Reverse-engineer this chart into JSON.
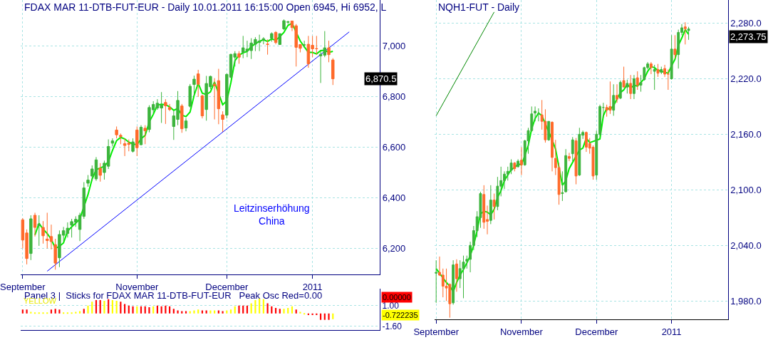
{
  "chart_data": [
    {
      "type": "candlestick",
      "title": "FDAX MAR 11-DTB-FUT-EUR - Daily 10.01.2011 16:15:00 Open 6945, Hi 6952, L",
      "categories": [
        "September",
        null,
        null,
        null,
        null,
        null,
        null,
        null,
        null,
        null,
        null,
        null,
        null,
        null,
        null,
        null,
        null,
        null,
        null,
        null,
        null,
        null,
        null,
        null,
        null,
        null,
        null,
        null,
        "November",
        null,
        null,
        null,
        null,
        null,
        null,
        null,
        null,
        null,
        null,
        null,
        null,
        null,
        null,
        null,
        null,
        null,
        null,
        null,
        null,
        null,
        "December",
        null,
        null,
        null,
        null,
        null,
        null,
        null,
        null,
        null,
        null,
        null,
        null,
        null,
        null,
        null,
        null,
        null,
        null,
        null,
        null,
        "2011",
        null,
        null,
        null,
        null,
        null,
        null,
        null,
        null,
        null,
        null,
        null,
        null,
        null,
        null,
        null,
        null
      ],
      "ohlc": [
        [
          6313,
          6320,
          6200,
          6233
        ],
        [
          6261,
          6275,
          6137,
          6160
        ],
        [
          6180,
          6331,
          6154,
          6317
        ],
        [
          6331,
          6341,
          6247,
          6283
        ],
        [
          6290,
          6331,
          6210,
          6296
        ],
        [
          6283,
          6308,
          6219,
          6250
        ],
        [
          6237,
          6341,
          6200,
          6231
        ],
        [
          6247,
          6294,
          6196,
          6227
        ],
        [
          6215,
          6238,
          6116,
          6142
        ],
        [
          6163,
          6271,
          6126,
          6255
        ],
        [
          6252,
          6285,
          6229,
          6270
        ],
        [
          6259,
          6303,
          6243,
          6280
        ],
        [
          6292,
          6317,
          6243,
          6306
        ],
        [
          6303,
          6327,
          6285,
          6315
        ],
        [
          6275,
          6341,
          6229,
          6331
        ],
        [
          6327,
          6462,
          6317,
          6439
        ],
        [
          6458,
          6490,
          6444,
          6470
        ],
        [
          6486,
          6528,
          6467,
          6514
        ],
        [
          6475,
          6561,
          6467,
          6550
        ],
        [
          6517,
          6537,
          6464,
          6489
        ],
        [
          6500,
          6547,
          6472,
          6537
        ],
        [
          6525,
          6631,
          6514,
          6603
        ],
        [
          6616,
          6635,
          6603,
          6625
        ],
        [
          6668,
          6682,
          6635,
          6649
        ],
        [
          6647,
          6654,
          6612,
          6642
        ],
        [
          6614,
          6635,
          6565,
          6607
        ],
        [
          6616,
          6631,
          6584,
          6611
        ],
        [
          6584,
          6635,
          6579,
          6621
        ],
        [
          6668,
          6682,
          6565,
          6598
        ],
        [
          6610,
          6687,
          6607,
          6679
        ],
        [
          6675,
          6687,
          6612,
          6665
        ],
        [
          6670,
          6766,
          6659,
          6757
        ],
        [
          6748,
          6782,
          6734,
          6769
        ],
        [
          6755,
          6790,
          6748,
          6774
        ],
        [
          6755,
          6818,
          6696,
          6766
        ],
        [
          6777,
          6790,
          6692,
          6764
        ],
        [
          6757,
          6771,
          6743,
          6749
        ],
        [
          6682,
          6743,
          6629,
          6724
        ],
        [
          6710,
          6822,
          6687,
          6785
        ],
        [
          6763,
          6771,
          6657,
          6673
        ],
        [
          6676,
          6715,
          6663,
          6704
        ],
        [
          6762,
          6850,
          6757,
          6841
        ],
        [
          6848,
          6883,
          6804,
          6869
        ],
        [
          6890,
          6906,
          6799,
          6849
        ],
        [
          6803,
          6808,
          6714,
          6724
        ],
        [
          6749,
          6882,
          6705,
          6852
        ],
        [
          6839,
          6883,
          6830,
          6880
        ],
        [
          6849,
          6873,
          6710,
          6843
        ],
        [
          6863,
          6910,
          6691,
          6752
        ],
        [
          6728,
          6742,
          6661,
          6710
        ],
        [
          6727,
          6891,
          6714,
          6888
        ],
        [
          6877,
          6970,
          6873,
          6967
        ],
        [
          6956,
          6980,
          6919,
          6970
        ],
        [
          6970,
          6980,
          6930,
          6956
        ],
        [
          6975,
          7040,
          6952,
          6993
        ],
        [
          6981,
          7021,
          6956,
          6988
        ],
        [
          6982,
          7031,
          6949,
          7012
        ],
        [
          7007,
          7035,
          6980,
          7026
        ],
        [
          7014,
          7045,
          6980,
          7020
        ],
        [
          7023,
          7035,
          7007,
          7029
        ],
        [
          7008,
          7026,
          6966,
          7006
        ],
        [
          7031,
          7054,
          7017,
          7049
        ],
        [
          7054,
          7059,
          7007,
          7014
        ],
        [
          7006,
          7049,
          7005,
          7049
        ],
        [
          7068,
          7105,
          7063,
          7100
        ],
        [
          7094,
          7100,
          7087,
          7096
        ],
        [
          7099,
          7100,
          7059,
          7073
        ],
        [
          7080,
          7087,
          6919,
          6995
        ],
        [
          7006,
          7007,
          6975,
          6991
        ],
        [
          7004,
          7021,
          6993,
          7005
        ],
        [
          7007,
          7040,
          6914,
          6930
        ],
        [
          7003,
          7040,
          6956,
          6989
        ],
        [
          6990,
          7040,
          6966,
          6989
        ],
        [
          6961,
          6980,
          6854,
          6967
        ],
        [
          6964,
          7059,
          6956,
          6993
        ],
        [
          6993,
          7021,
          6936,
          6966
        ],
        [
          6945,
          6952,
          6846,
          6870.5
        ],
        null,
        null,
        null,
        null,
        null,
        null,
        null,
        null,
        null,
        null,
        null
      ],
      "colors": [
        "#ff6a2a",
        "#ff6a2a",
        "#3cb43c",
        "#ff6a2a",
        "#3cb43c",
        "#ff6a2a",
        "#ff6a2a",
        "#ff6a2a",
        "#ff6a2a",
        "#3cb43c",
        "#3cb43c",
        "#3cb43c",
        "#3cb43c",
        "#3cb43c",
        "#3cb43c",
        "#3cb43c",
        "#3cb43c",
        "#3cb43c",
        "#3cb43c",
        "#ff6a2a",
        "#3cb43c",
        "#3cb43c",
        "#3cb43c",
        "#ff6a2a",
        "#ff6a2a",
        "#ff6a2a",
        "#ff6a2a",
        "#3cb43c",
        "#ff6a2a",
        "#3cb43c",
        "#ff6a2a",
        "#3cb43c",
        "#3cb43c",
        "#3cb43c",
        "#3cb43c",
        "#ff6a2a",
        "#ff6a2a",
        "#3cb43c",
        "#3cb43c",
        "#ff6a2a",
        "#3cb43c",
        "#3cb43c",
        "#3cb43c",
        "#ff6a2a",
        "#ff6a2a",
        "#3cb43c",
        "#3cb43c",
        "#ff6a2a",
        "#ff6a2a",
        "#ff6a2a",
        "#3cb43c",
        "#3cb43c",
        "#3cb43c",
        "#ff6a2a",
        "#3cb43c",
        "#3cb43c",
        "#3cb43c",
        "#3cb43c",
        "#3cb43c",
        "#3cb43c",
        "#ff6a2a",
        "#3cb43c",
        "#ff6a2a",
        "#3cb43c",
        "#3cb43c",
        "#3cb43c",
        "#ff6a2a",
        "#ff6a2a",
        "#ff6a2a",
        "#3cb43c",
        "#ff6a2a",
        "#ff6a2a",
        "#ff6a2a",
        "#3cb43c",
        "#3cb43c",
        "#ff6a2a",
        "#ff6a2a",
        null,
        null,
        null,
        null,
        null,
        null,
        null,
        null,
        null,
        null,
        null
      ],
      "series": [
        {
          "type": "line",
          "color": "#00ee00",
          "values": [
            null,
            null,
            null,
            6253,
            6299,
            6276,
            6259,
            6236,
            6200,
            6208,
            6222,
            6268,
            6285,
            6300,
            6317,
            null,
            6413,
            6474,
            6511,
            6518,
            6525,
            6543,
            6588,
            6626,
            6639,
            6633,
            6620,
            6613,
            6610,
            6633,
            6647,
            6700,
            6730,
            6767,
            6770,
            6768,
            6760,
            6746,
            6753,
            6727,
            6721,
            6739,
            6805,
            6853,
            6814,
            6808,
            6819,
            6858,
            null,
            6768,
            6783,
            6855,
            6942,
            6964,
            6973,
            6979,
            6998,
            7009,
            7019,
            7025,
            7018,
            7028,
            7023,
            7037,
            7054,
            7082,
            7090,
            7055,
            7020,
            6997,
            6975,
            6975,
            6969,
            6982,
            6983,
            6975,
            6979,
            null,
            null,
            null,
            null,
            null,
            null,
            null,
            null,
            null,
            null,
            null
          ]
        },
        {
          "type": "line",
          "color": "#0000ff",
          "values": [
            null,
            null,
            null,
            null,
            null,
            null,
            6110,
            null,
            null,
            null,
            null,
            null,
            null,
            null,
            null,
            null,
            null,
            null,
            null,
            null,
            null,
            null,
            null,
            null,
            null,
            null,
            null,
            null,
            null,
            null,
            null,
            null,
            null,
            null,
            null,
            null,
            null,
            null,
            null,
            null,
            null,
            null,
            null,
            null,
            null,
            null,
            null,
            null,
            null,
            null,
            null,
            null,
            null,
            null,
            null,
            null,
            null,
            null,
            null,
            null,
            null,
            null,
            null,
            null,
            null,
            null,
            null,
            null,
            null,
            null,
            null,
            null,
            null,
            null,
            null,
            null,
            null,
            null,
            null,
            null,
            7056,
            null,
            null,
            null,
            null,
            null,
            null,
            null
          ]
        }
      ],
      "ylim": [
        6096,
        7182
      ],
      "yticks": [
        {
          "value": 6200,
          "label": "6,200"
        },
        {
          "value": 6400,
          "label": "6,400"
        },
        {
          "value": 6600,
          "label": "6,600"
        },
        {
          "value": 6800,
          "label": "6,800"
        },
        {
          "value": 7000,
          "label": "7,000"
        }
      ],
      "grid": true,
      "annotations": [
        "Leitzinserhöhung\nChina",
        "6,870.5"
      ]
    },
    {
      "type": "bar",
      "title": "Panel 3 |  Sticks for FDAX MAR 11-DTB-FUT-EUR   Peak Osc Red=0.00",
      "categories": [
        null,
        null,
        null,
        null,
        null,
        null,
        null,
        null,
        null,
        null,
        null,
        null,
        null,
        null,
        null,
        null,
        null,
        null,
        null,
        null,
        null,
        null,
        null,
        null,
        null,
        null,
        null,
        null,
        null,
        null,
        null,
        null,
        null,
        null,
        null,
        null,
        null,
        null,
        null,
        null,
        null,
        null,
        null,
        null,
        null,
        null,
        null,
        null,
        null,
        null,
        null,
        null,
        null,
        null,
        null,
        null,
        null,
        null,
        null,
        null,
        null,
        null,
        null,
        null,
        null,
        null,
        null,
        null,
        null,
        null,
        null,
        null,
        null,
        null,
        null,
        null,
        null,
        null,
        null,
        null,
        null,
        null,
        null,
        null,
        null,
        null,
        null,
        null
      ],
      "values": [
        0.5,
        0.5,
        0.2,
        0.1,
        0.1,
        0.1,
        0.1,
        0.5,
        0.6,
        0.5,
        0.1,
        0.1,
        0.1,
        0.2,
        0.3,
        0.6,
        1.0,
        1.5,
        1.7,
        1.7,
        1.6,
        1.8,
        1.7,
        1.6,
        1.5,
        1.2,
        1.0,
        0.9,
        0.9,
        0.9,
        0.9,
        0.8,
        0.9,
        1.0,
        0.9,
        1.0,
        0.9,
        0.6,
        0.4,
        0.3,
        0.3,
        0.3,
        0.4,
        0.5,
        0.4,
        0.4,
        0.4,
        0.4,
        0.4,
        0.3,
        0.4,
        0.5,
        0.9,
        1.0,
        1.0,
        1.0,
        1.3,
        1.7,
        1.9,
        1.8,
        1.3,
        0.9,
        0.7,
        0.6,
        0.6,
        0.7,
        0.9,
        0.5,
        0.2,
        -0.1,
        -0.2,
        -0.2,
        -0.2,
        -0.8,
        -0.8,
        -0.8,
        -0.7,
        null,
        null,
        null,
        null,
        null,
        null,
        null,
        null,
        null,
        null,
        null
      ],
      "colors": [
        "#ff0000",
        "#ff0000",
        "#ffff00",
        "#ffff00",
        "#ffff00",
        "#ffff00",
        "#ffff00",
        "#ff0000",
        "#ff0000",
        "#ff0000",
        "#ffff00",
        "#ffff00",
        "#ffff00",
        "#ffff00",
        "#ffff00",
        "#ff0000",
        "#ffff00",
        "#ffff00",
        "#ff0000",
        "#ff0000",
        "#ffff00",
        "#ff0000",
        "#ffff00",
        "#ffff00",
        "#ff0000",
        "#ff0000",
        "#ff0000",
        "#ff0000",
        "#ffff00",
        "#ff0000",
        "#ff0000",
        "#ff0000",
        "#ffff00",
        "#ff0000",
        "#ff0000",
        "#ff0000",
        "#ff0000",
        "#ff0000",
        "#ff0000",
        "#ff0000",
        "#ff0000",
        "#ffff00",
        "#ffff00",
        "#ffff00",
        "#ff0000",
        "#ff0000",
        "#ffff00",
        "#ffff00",
        "#ff0000",
        "#ff0000",
        "#ffff00",
        "#ffff00",
        "#ffff00",
        "#ff0000",
        "#ff0000",
        "#ff0000",
        "#ffff00",
        "#ffff00",
        "#ffff00",
        "#ffff00",
        "#ff0000",
        "#ff0000",
        "#ff0000",
        "#ff0000",
        "#ffff00",
        "#ffff00",
        "#ffff00",
        "#ff0000",
        "#ffff00",
        "#ffff00",
        "#ff0000",
        "#ff0000",
        "#ff0000",
        "#ff0000",
        "#ff0000",
        "#ff0000",
        "#ffff00",
        null,
        null,
        null,
        null,
        null,
        null,
        null,
        null,
        null,
        null,
        null
      ],
      "ylim": [
        -2.1,
        3.1
      ],
      "yticks": [
        {
          "value": -1.6,
          "label": "-1.60"
        },
        {
          "value": 1.0,
          "label": "1.00"
        }
      ],
      "tick_labels": "y",
      "grid": "y",
      "annotations": [
        "YELLOW",
        "0.00000",
        "-0.722235"
      ]
    },
    {
      "type": "candlestick",
      "title": "NQH1-FUT - Daily",
      "categories": [
        "September",
        null,
        null,
        null,
        null,
        null,
        null,
        null,
        null,
        null,
        null,
        null,
        null,
        null,
        null,
        null,
        null,
        null,
        null,
        null,
        null,
        null,
        null,
        null,
        null,
        "November",
        null,
        null,
        null,
        null,
        null,
        null,
        null,
        null,
        null,
        null,
        null,
        null,
        null,
        null,
        null,
        null,
        null,
        null,
        null,
        null,
        null,
        "December",
        null,
        null,
        null,
        null,
        null,
        null,
        null,
        null,
        null,
        null,
        null,
        null,
        null,
        null,
        null,
        null,
        null,
        null,
        null,
        null,
        null,
        "2011",
        null,
        null,
        null,
        null,
        null,
        null,
        null,
        null,
        null,
        null,
        null,
        null,
        null,
        null,
        null,
        null
      ],
      "ohlc": [
        [
          2010,
          2024,
          1978,
          2011
        ],
        [
          2011,
          2028,
          2007,
          2008
        ],
        [
          2008,
          2015,
          1984,
          1996
        ],
        [
          1996,
          2015,
          1980,
          1994
        ],
        [
          1998,
          1999,
          1962,
          1977
        ],
        [
          1978,
          2024,
          1976,
          2019
        ],
        [
          2020,
          2025,
          1990,
          2004
        ],
        [
          2004,
          2024,
          1994,
          2015
        ],
        [
          2015,
          2029,
          1983,
          2022
        ],
        [
          2023,
          2029,
          2015,
          2025
        ],
        [
          2025,
          2044,
          2011,
          2040
        ],
        [
          2040,
          2061,
          2035,
          2056
        ],
        [
          2056,
          2077,
          2049,
          2071
        ],
        [
          2070,
          2098,
          2059,
          2096
        ],
        [
          2095,
          2105,
          2058,
          2065
        ],
        [
          2068,
          2083,
          2052,
          2066
        ],
        [
          2067,
          2105,
          2063,
          2089
        ],
        [
          2089,
          2096,
          2068,
          2082
        ],
        [
          2082,
          2114,
          2078,
          2104
        ],
        [
          2104,
          2125,
          2093,
          2110
        ],
        [
          2110,
          2120,
          2101,
          2117
        ],
        [
          2117,
          2125,
          2110,
          2120
        ],
        [
          2121,
          2133,
          2117,
          2129
        ],
        [
          2129,
          2130,
          2120,
          2123
        ],
        [
          2125,
          2133,
          2124,
          2131
        ],
        [
          2132,
          2146,
          2116,
          2127
        ],
        [
          2127,
          2154,
          2126,
          2153
        ],
        [
          2153,
          2167,
          2139,
          2164
        ],
        [
          2164,
          2190,
          2163,
          2182
        ],
        [
          2183,
          2190,
          2174,
          2185
        ],
        [
          2182,
          2188,
          2174,
          2182
        ],
        [
          2181,
          2197,
          2165,
          2174
        ],
        [
          2174,
          2187,
          2151,
          2154
        ],
        [
          2154,
          2174,
          2153,
          2174
        ],
        [
          2173,
          2174,
          2120,
          2135
        ],
        [
          2134,
          2154,
          2116,
          2124
        ],
        [
          2124,
          2129,
          2084,
          2095
        ],
        [
          2096,
          2120,
          2088,
          2097
        ],
        [
          2098,
          2144,
          2097,
          2137
        ],
        [
          2136,
          2140,
          2131,
          2134
        ],
        [
          2139,
          2157,
          2131,
          2154
        ],
        [
          2153,
          2156,
          2106,
          2115
        ],
        [
          2116,
          2167,
          2115,
          2160
        ],
        [
          2159,
          2164,
          2155,
          2162
        ],
        [
          2162,
          2163,
          2141,
          2146
        ],
        [
          2150,
          2156,
          2139,
          2145
        ],
        [
          2146,
          2148,
          2111,
          2115
        ],
        [
          2116,
          2164,
          2111,
          2160
        ],
        [
          2160,
          2192,
          2158,
          2190
        ],
        [
          2189,
          2194,
          2178,
          2189
        ],
        [
          2189,
          2192,
          2179,
          2186
        ],
        [
          2190,
          2217,
          2182,
          2186
        ],
        [
          2186,
          2214,
          2180,
          2202
        ],
        [
          2202,
          2214,
          2194,
          2198
        ],
        [
          2199,
          2218,
          2198,
          2216
        ],
        [
          2218,
          2233,
          2211,
          2211
        ],
        [
          2211,
          2219,
          2204,
          2215
        ],
        [
          2215,
          2224,
          2198,
          2204
        ],
        [
          2204,
          2224,
          2198,
          2220
        ],
        [
          2221,
          2228,
          2208,
          2213
        ],
        [
          2213,
          2224,
          2206,
          2216
        ],
        [
          2219,
          2233,
          2218,
          2232
        ],
        [
          2232,
          2238,
          2230,
          2236
        ],
        [
          2236,
          2238,
          2225,
          2232
        ],
        [
          2228,
          2235,
          2208,
          2230
        ],
        [
          2230,
          2236,
          2222,
          2226
        ],
        [
          2227,
          2233,
          2225,
          2230
        ],
        [
          2231,
          2235,
          2222,
          2225
        ],
        [
          2225,
          2230,
          2208,
          2225
        ],
        [
          2220,
          2267,
          2219,
          2252
        ],
        [
          2252,
          2267,
          2242,
          2246
        ],
        [
          2246,
          2273,
          2231,
          2270
        ],
        [
          2270,
          2279,
          2267,
          2275
        ],
        [
          2276,
          2281,
          2257,
          2274
        ],
        [
          2272,
          2276,
          2262,
          2273.75
        ],
        null,
        null,
        null,
        null,
        null,
        null,
        null,
        null,
        null,
        null,
        null
      ],
      "colors": [
        "#3cb43c",
        "#ff6a2a",
        "#ff6a2a",
        "#ff6a2a",
        "#ff6a2a",
        "#3cb43c",
        "#ff6a2a",
        "#3cb43c",
        "#3cb43c",
        "#3cb43c",
        "#3cb43c",
        "#3cb43c",
        "#3cb43c",
        "#3cb43c",
        "#ff6a2a",
        "#ff6a2a",
        "#3cb43c",
        "#ff6a2a",
        "#3cb43c",
        "#3cb43c",
        "#3cb43c",
        "#3cb43c",
        "#3cb43c",
        "#ff6a2a",
        "#3cb43c",
        "#ff6a2a",
        "#3cb43c",
        "#3cb43c",
        "#3cb43c",
        "#3cb43c",
        "#3cb43c",
        "#ff6a2a",
        "#ff6a2a",
        "#3cb43c",
        "#ff6a2a",
        "#ff6a2a",
        "#ff6a2a",
        "#3cb43c",
        "#3cb43c",
        "#ff6a2a",
        "#3cb43c",
        "#ff6a2a",
        "#3cb43c",
        "#3cb43c",
        "#ff6a2a",
        "#ff6a2a",
        "#ff6a2a",
        "#3cb43c",
        "#3cb43c",
        "#3cb43c",
        "#ff6a2a",
        "#ff6a2a",
        "#3cb43c",
        "#ff6a2a",
        "#3cb43c",
        "#ff6a2a",
        "#3cb43c",
        "#ff6a2a",
        "#3cb43c",
        "#ff6a2a",
        "#3cb43c",
        "#3cb43c",
        "#3cb43c",
        "#ff6a2a",
        "#3cb43c",
        "#ff6a2a",
        "#3cb43c",
        "#ff6a2a",
        "#ff6a2a",
        "#3cb43c",
        "#ff6a2a",
        "#3cb43c",
        "#3cb43c",
        "#ff6a2a",
        "#3cb43c",
        null,
        null,
        null,
        null,
        null,
        null,
        null,
        null,
        null,
        null,
        null
      ],
      "series": [
        {
          "type": "line",
          "color": "#00ee00",
          "values": [
            2015,
            2010,
            2005,
            2000,
            1996,
            1990,
            2000,
            2008,
            2014,
            2021,
            2029,
            2040,
            2056,
            2074,
            2077,
            2076,
            2073,
            2079,
            2092,
            2099,
            2110,
            2116,
            2122,
            2124,
            2128,
            2127,
            2137,
            2148,
            2166,
            2177,
            2183,
            2180,
            null,
            null,
            2154,
            2144,
            null,
            2105,
            2110,
            2123,
            null,
            null,
            2143,
            2145,
            2156,
            2151,
            null,
            null,
            2155,
            2180,
            2188,
            2187,
            2191,
            2198,
            2205,
            2208,
            2214,
            2210,
            2213,
            2212,
            2216,
            2220,
            2228,
            2233,
            2232,
            2229,
            2228,
            2227,
            2226,
            2234,
            2241,
            2256,
            2264,
            2273,
            2268,
            null,
            null,
            null,
            null,
            null,
            null,
            null,
            null,
            null,
            null,
            null
          ]
        },
        {
          "type": "line",
          "color": "#008800",
          "values": [
            2180,
            null,
            null,
            null,
            null,
            null,
            null,
            null,
            null,
            null,
            null,
            null,
            null,
            null,
            null,
            null,
            null,
            2292,
            null,
            null,
            null,
            null,
            null,
            null,
            null,
            null,
            null,
            null,
            null,
            null,
            null,
            null,
            null,
            null,
            null,
            null,
            null,
            null,
            null,
            null,
            null,
            null,
            null,
            null,
            null,
            null,
            null,
            null,
            null,
            null,
            null,
            null,
            null,
            null,
            null,
            null,
            null,
            null,
            null,
            null,
            null,
            null,
            null,
            null,
            null,
            null,
            null,
            null,
            null,
            null,
            null,
            null,
            null,
            null,
            null,
            null,
            null,
            null,
            null,
            null,
            null,
            null,
            null,
            null,
            null,
            null
          ]
        }
      ],
      "ylim": [
        1960,
        2305
      ],
      "yticks": [
        {
          "value": 1980,
          "label": "1,980.0"
        },
        {
          "value": 2040,
          "label": "2,040.0"
        },
        {
          "value": 2100,
          "label": "2,100.0"
        },
        {
          "value": 2160,
          "label": "2,160.0"
        },
        {
          "value": 2220,
          "label": "2,220.0"
        },
        {
          "value": 2280,
          "label": "2,280.0"
        }
      ],
      "grid": true,
      "annotations": [
        "2,273.75"
      ]
    }
  ]
}
